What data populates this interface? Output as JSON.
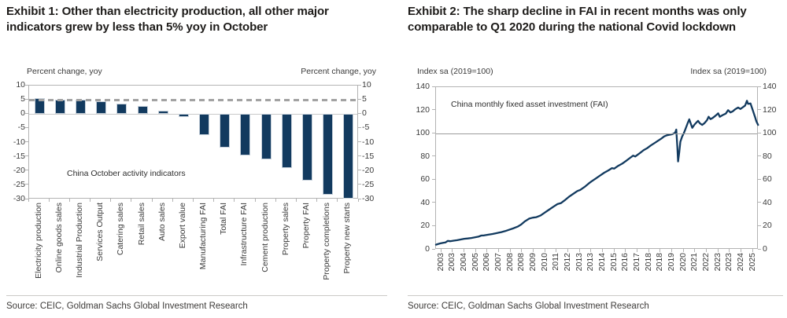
{
  "panels": [
    {
      "exhibit_title": "Exhibit 1: Other than electricity production, all other major indicators grew by less than 5% yoy in October",
      "y_axis_label_left": "Percent change, yoy",
      "y_axis_label_right": "Percent change, yoy",
      "annotation": "China October activity indicators",
      "source": "Source: CEIC, Goldman Sachs Global Investment Research"
    },
    {
      "exhibit_title": "Exhibit 2: The sharp decline in FAI in recent months was only comparable to Q1 2020 during the national Covid lockdown",
      "y_axis_label_left": "Index sa (2019=100)",
      "y_axis_label_right": "Index sa (2019=100)",
      "annotation": "China monthly fixed asset investment (FAI)",
      "source": "Source: CEIC, Goldman Sachs Global Investment Research"
    }
  ],
  "colors": {
    "navy": "#123A5F",
    "dashed_reference": "#a2a2a2",
    "axis_gray": "#b3b3b3",
    "text_dark": "#1d1b19"
  },
  "chart_data": [
    {
      "type": "bar",
      "title": "China October activity indicators",
      "xlabel": "",
      "ylabel": "Percent change, yoy",
      "ylim": [
        -30,
        10
      ],
      "yticks": [
        10,
        5,
        0,
        -5,
        -10,
        -15,
        -20,
        -25,
        -30
      ],
      "grid": "zero-line only",
      "reference_line": {
        "value": 5,
        "style": "dashed"
      },
      "bar_color": "#123A5F",
      "categories": [
        "Electricity production",
        "Online goods sales",
        "Industrial Production",
        "Services Output",
        "Catering sales",
        "Retail sales",
        "Auto sales",
        "Export value",
        "Manufacturing FAI",
        "Total FAI",
        "Infrastructure FAI",
        "Cement production",
        "Property sales",
        "Property FAI",
        "Property completions",
        "Property new starts"
      ],
      "values": [
        5.6,
        4.9,
        4.9,
        4.5,
        3.6,
        2.9,
        1.1,
        -1.1,
        -7.4,
        -11.9,
        -14.5,
        -15.9,
        -19.1,
        -23.5,
        -28.3,
        -29.8
      ]
    },
    {
      "type": "line",
      "title": "China monthly fixed asset investment (FAI)",
      "xlabel": "",
      "ylabel": "Index sa (2019=100)",
      "ylim": [
        0,
        140
      ],
      "yticks": [
        140,
        120,
        100,
        80,
        60,
        40,
        20,
        0
      ],
      "xlim": [
        2003,
        2025.83
      ],
      "grid": "100-line only",
      "reference_line": {
        "value": 100,
        "style": "solid"
      },
      "line_color": "#123A5F",
      "x_tick_labels": [
        "2003",
        "2003",
        "2004",
        "2005",
        "2006",
        "2007",
        "2008",
        "2008",
        "2009",
        "2010",
        "2011",
        "2012",
        "2013",
        "2013",
        "2014",
        "2015",
        "2016",
        "2017",
        "2018",
        "2018",
        "2019",
        "2020",
        "2021",
        "2022",
        "2023",
        "2023",
        "2024",
        "2025"
      ],
      "series": [
        {
          "name": "China monthly fixed asset investment (FAI)",
          "points": [
            [
              2003.0,
              4.3
            ],
            [
              2003.17,
              5.0
            ],
            [
              2003.33,
              5.5
            ],
            [
              2003.5,
              5.9
            ],
            [
              2003.67,
              6.2
            ],
            [
              2003.83,
              7.6
            ],
            [
              2004.0,
              7.3
            ],
            [
              2004.25,
              7.8
            ],
            [
              2004.5,
              8.2
            ],
            [
              2004.75,
              8.8
            ],
            [
              2005.0,
              9.4
            ],
            [
              2005.25,
              9.7
            ],
            [
              2005.5,
              10.1
            ],
            [
              2005.75,
              10.6
            ],
            [
              2006.0,
              11.2
            ],
            [
              2006.2,
              12.2
            ],
            [
              2006.4,
              12.3
            ],
            [
              2006.7,
              12.9
            ],
            [
              2007.0,
              13.5
            ],
            [
              2007.3,
              14.3
            ],
            [
              2007.6,
              15.1
            ],
            [
              2007.9,
              16.0
            ],
            [
              2008.2,
              17.3
            ],
            [
              2008.5,
              18.5
            ],
            [
              2008.8,
              20.0
            ],
            [
              2009.0,
              21.5
            ],
            [
              2009.3,
              24.5
            ],
            [
              2009.6,
              26.8
            ],
            [
              2009.85,
              27.6
            ],
            [
              2010.1,
              28.0
            ],
            [
              2010.4,
              29.5
            ],
            [
              2010.7,
              32.0
            ],
            [
              2011.0,
              34.5
            ],
            [
              2011.3,
              37.0
            ],
            [
              2011.6,
              39.3
            ],
            [
              2011.85,
              40.2
            ],
            [
              2012.1,
              42.5
            ],
            [
              2012.4,
              45.5
            ],
            [
              2012.7,
              48.0
            ],
            [
              2013.0,
              50.5
            ],
            [
              2013.2,
              51.5
            ],
            [
              2013.5,
              54.0
            ],
            [
              2013.8,
              57.0
            ],
            [
              2014.0,
              58.8
            ],
            [
              2014.3,
              61.3
            ],
            [
              2014.6,
              63.8
            ],
            [
              2014.9,
              66.3
            ],
            [
              2015.2,
              68.3
            ],
            [
              2015.45,
              70.3
            ],
            [
              2015.6,
              69.8
            ],
            [
              2015.9,
              72.3
            ],
            [
              2016.2,
              74.3
            ],
            [
              2016.45,
              76.5
            ],
            [
              2016.7,
              78.8
            ],
            [
              2016.95,
              81.0
            ],
            [
              2017.1,
              80.3
            ],
            [
              2017.4,
              83.0
            ],
            [
              2017.7,
              85.8
            ],
            [
              2017.95,
              87.5
            ],
            [
              2018.2,
              89.8
            ],
            [
              2018.45,
              91.8
            ],
            [
              2018.7,
              93.8
            ],
            [
              2018.95,
              95.8
            ],
            [
              2019.15,
              97.6
            ],
            [
              2019.35,
              98.6
            ],
            [
              2019.55,
              99.1
            ],
            [
              2019.75,
              99.6
            ],
            [
              2019.92,
              100.8
            ],
            [
              2020.0,
              103.5
            ],
            [
              2020.08,
              88.0
            ],
            [
              2020.13,
              76.0
            ],
            [
              2020.21,
              84.0
            ],
            [
              2020.29,
              93.0
            ],
            [
              2020.42,
              97.5
            ],
            [
              2020.54,
              100.5
            ],
            [
              2020.67,
              104.5
            ],
            [
              2020.79,
              108.5
            ],
            [
              2020.92,
              112.3
            ],
            [
              2021.04,
              108.0
            ],
            [
              2021.13,
              105.0
            ],
            [
              2021.29,
              107.8
            ],
            [
              2021.42,
              109.5
            ],
            [
              2021.54,
              111.0
            ],
            [
              2021.67,
              108.8
            ],
            [
              2021.83,
              107.5
            ],
            [
              2022.0,
              109.0
            ],
            [
              2022.17,
              111.5
            ],
            [
              2022.29,
              114.5
            ],
            [
              2022.42,
              112.5
            ],
            [
              2022.58,
              113.5
            ],
            [
              2022.79,
              115.5
            ],
            [
              2022.96,
              117.5
            ],
            [
              2023.08,
              114.5
            ],
            [
              2023.29,
              116.0
            ],
            [
              2023.5,
              117.2
            ],
            [
              2023.67,
              120.2
            ],
            [
              2023.83,
              118.2
            ],
            [
              2024.0,
              119.2
            ],
            [
              2024.17,
              121.0
            ],
            [
              2024.38,
              122.5
            ],
            [
              2024.54,
              121.2
            ],
            [
              2024.71,
              122.7
            ],
            [
              2024.87,
              124.2
            ],
            [
              2025.0,
              128.3
            ],
            [
              2025.08,
              125.6
            ],
            [
              2025.25,
              126.0
            ],
            [
              2025.42,
              120.0
            ],
            [
              2025.58,
              114.0
            ],
            [
              2025.67,
              110.5
            ],
            [
              2025.79,
              107.5
            ]
          ]
        }
      ]
    }
  ]
}
